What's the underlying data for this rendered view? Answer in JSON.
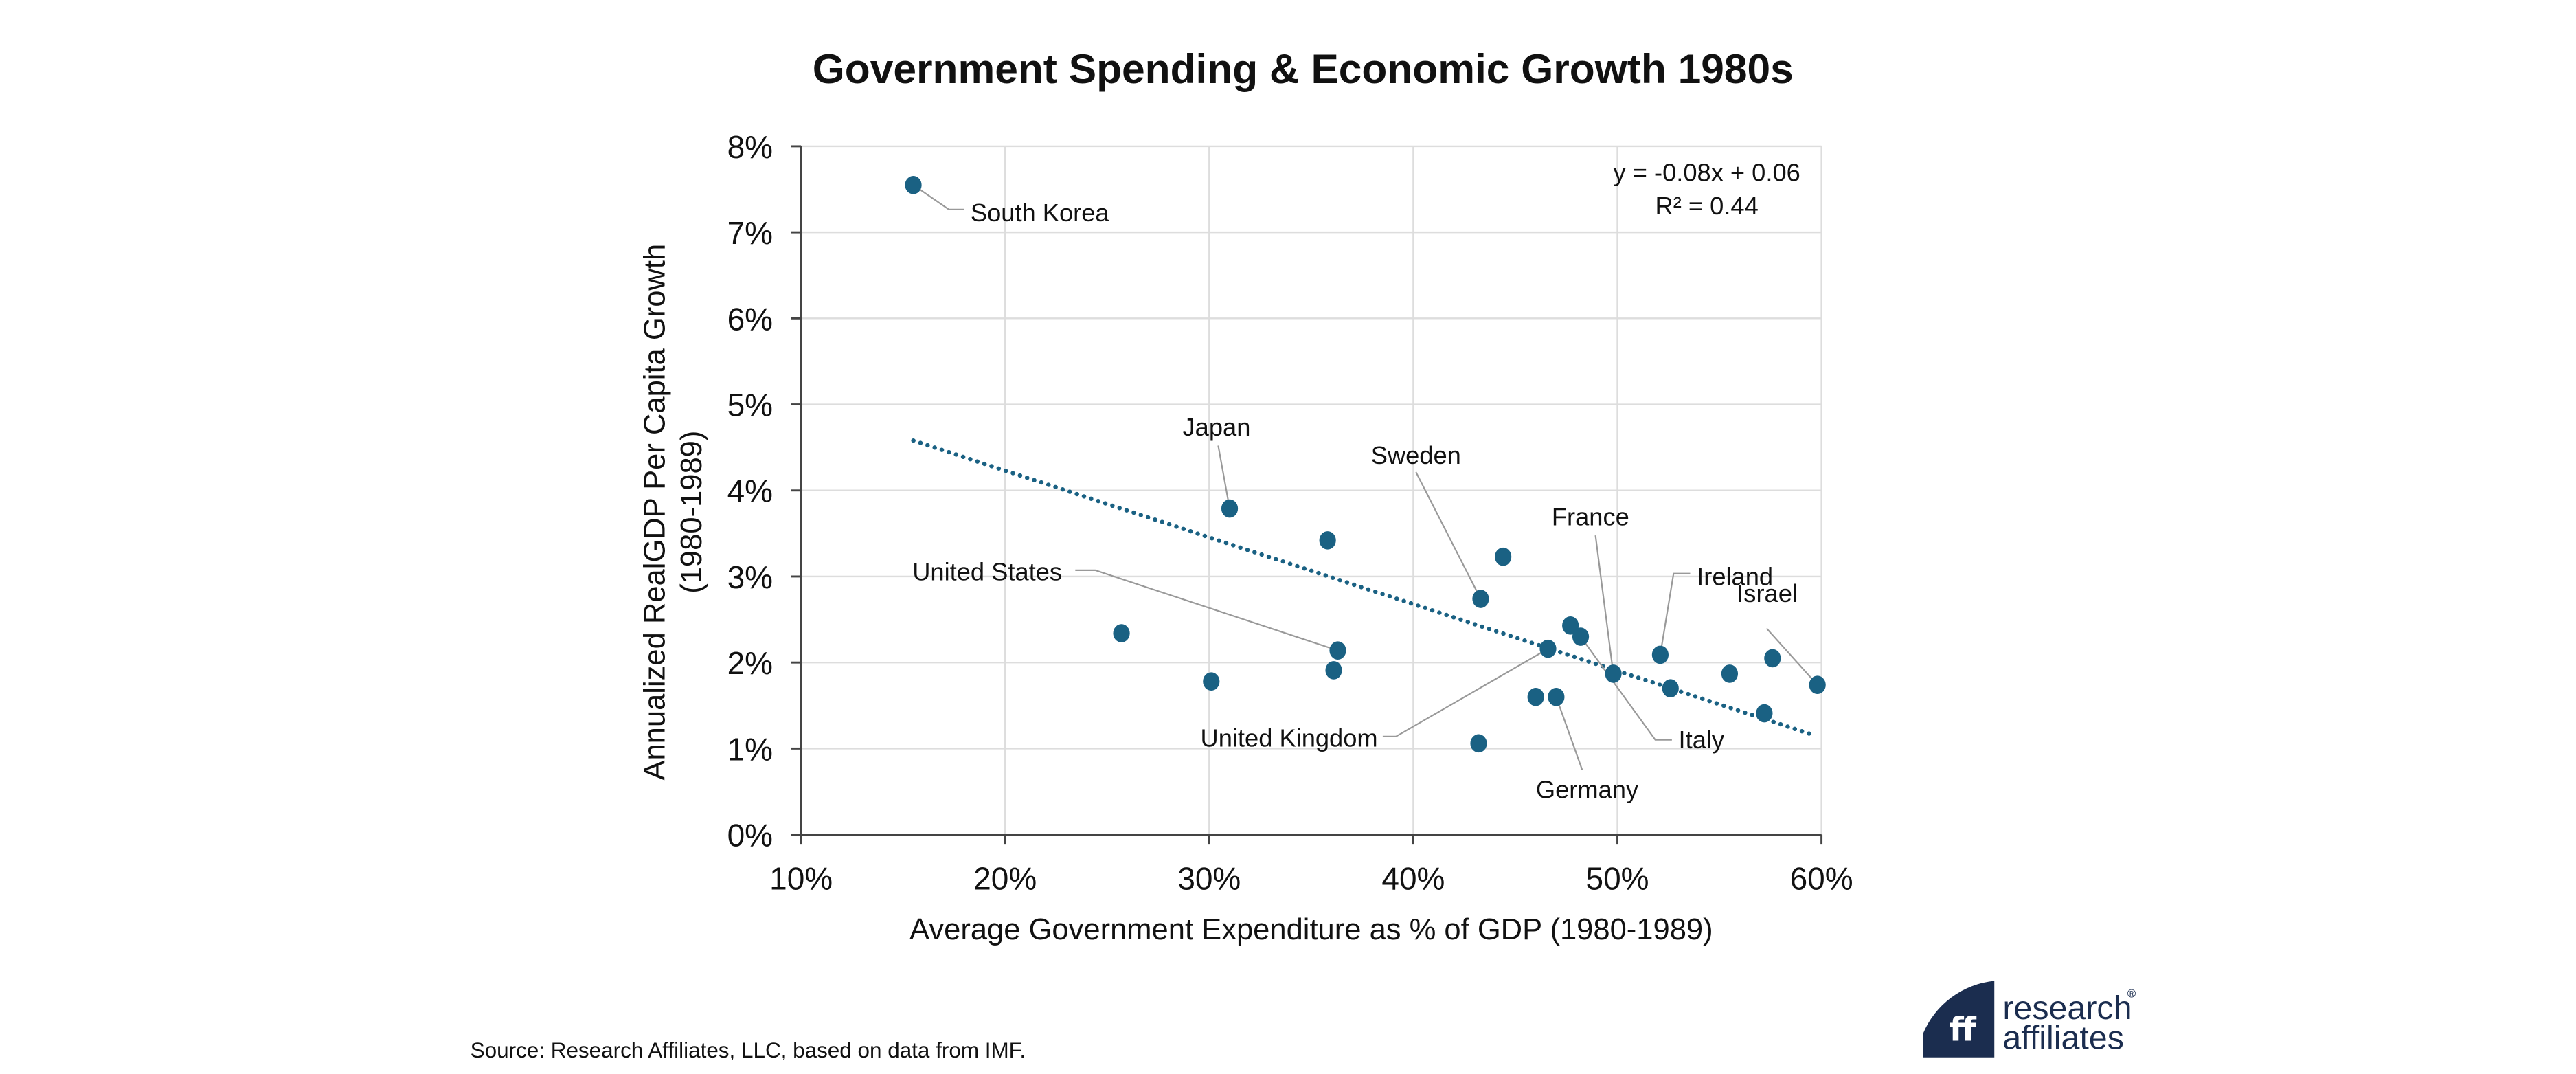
{
  "chart_data": {
    "type": "scatter",
    "title": "Government Spending & Economic Growth 1980s",
    "xlabel": "Average Government Expenditure as % of GDP (1980-1989)",
    "ylabel_line1": "Annualized RealGDP Per Capita Growth",
    "ylabel_line2": "(1980-1989)",
    "xlim": [
      10,
      60
    ],
    "ylim": [
      0,
      8
    ],
    "x_ticks": [
      "10%",
      "20%",
      "30%",
      "40%",
      "50%",
      "60%"
    ],
    "y_ticks": [
      "0%",
      "1%",
      "2%",
      "3%",
      "4%",
      "5%",
      "6%",
      "7%",
      "8%"
    ],
    "grid": true,
    "units": "percent",
    "points": [
      {
        "x": 15.5,
        "y": 7.55,
        "label": "South Korea"
      },
      {
        "x": 31.0,
        "y": 3.79,
        "label": "Japan"
      },
      {
        "x": 35.8,
        "y": 3.42,
        "label": ""
      },
      {
        "x": 44.4,
        "y": 3.23,
        "label": ""
      },
      {
        "x": 43.3,
        "y": 2.74,
        "label": "Sweden"
      },
      {
        "x": 25.7,
        "y": 2.34,
        "label": ""
      },
      {
        "x": 36.3,
        "y": 2.14,
        "label": "United States"
      },
      {
        "x": 36.1,
        "y": 1.91,
        "label": ""
      },
      {
        "x": 30.1,
        "y": 1.78,
        "label": ""
      },
      {
        "x": 47.7,
        "y": 2.43,
        "label": ""
      },
      {
        "x": 48.2,
        "y": 2.3,
        "label": "Italy"
      },
      {
        "x": 46.6,
        "y": 2.16,
        "label": "United Kingdom"
      },
      {
        "x": 49.8,
        "y": 1.87,
        "label": "France"
      },
      {
        "x": 52.1,
        "y": 2.09,
        "label": "Ireland"
      },
      {
        "x": 52.6,
        "y": 1.7,
        "label": ""
      },
      {
        "x": 55.5,
        "y": 1.87,
        "label": ""
      },
      {
        "x": 57.6,
        "y": 2.05,
        "label": ""
      },
      {
        "x": 59.8,
        "y": 1.74,
        "label": "Israel"
      },
      {
        "x": 57.2,
        "y": 1.41,
        "label": ""
      },
      {
        "x": 46.0,
        "y": 1.6,
        "label": ""
      },
      {
        "x": 47.0,
        "y": 1.6,
        "label": "Germany"
      },
      {
        "x": 43.2,
        "y": 1.06,
        "label": ""
      }
    ],
    "trendline": {
      "type": "linear",
      "equation": "y = -0.08x + 0.06",
      "r_squared": "R² = 0.44",
      "x_range": [
        15.5,
        59.7
      ],
      "y_start": 4.58,
      "y_end": 1.15
    },
    "colors": {
      "points": "#1a6183",
      "trend": "#1a6183",
      "grid": "#dddddd"
    }
  },
  "footer": {
    "source": "Source: Research Affiliates, LLC, based on data from IMF."
  },
  "logo": {
    "line1": "research",
    "line2": "affiliates",
    "registered": "®",
    "brand_color": "#1b2d4f"
  }
}
